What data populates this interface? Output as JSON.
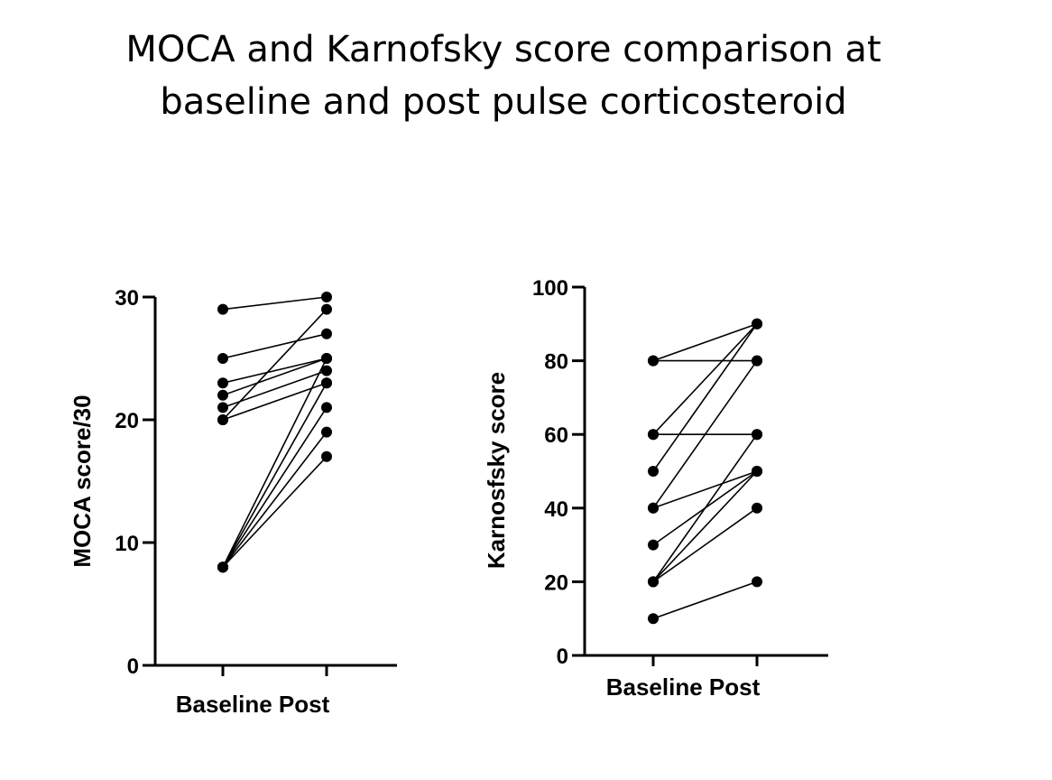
{
  "title": {
    "line1": "MOCA and Karnofsky score comparison at",
    "line2": "baseline and post pulse corticosteroid"
  },
  "colors": {
    "points": "#000000",
    "lines": "#000000",
    "axes": "#000000"
  },
  "chart_data": [
    {
      "type": "line",
      "title": "",
      "categories": [
        "Baseline",
        "Post"
      ],
      "xlabel": "Baseline Post",
      "ylabel": "MOCA score/30",
      "ylim": [
        0,
        30
      ],
      "yticks": [
        0,
        10,
        20,
        30
      ],
      "grid": false,
      "pairs": [
        [
          29,
          30
        ],
        [
          25,
          27
        ],
        [
          23,
          25
        ],
        [
          22,
          25
        ],
        [
          21,
          24
        ],
        [
          20,
          23
        ],
        [
          20,
          29
        ],
        [
          8,
          25
        ],
        [
          8,
          23
        ],
        [
          8,
          21
        ],
        [
          8,
          19
        ],
        [
          8,
          17
        ]
      ]
    },
    {
      "type": "line",
      "title": "",
      "categories": [
        "Baseline",
        "Post"
      ],
      "xlabel": "Baseline Post",
      "ylabel": "Karnosfsky score",
      "ylim": [
        0,
        100
      ],
      "yticks": [
        0,
        20,
        40,
        60,
        80,
        100
      ],
      "grid": false,
      "pairs": [
        [
          80,
          90
        ],
        [
          80,
          80
        ],
        [
          60,
          90
        ],
        [
          60,
          60
        ],
        [
          50,
          90
        ],
        [
          40,
          80
        ],
        [
          40,
          50
        ],
        [
          30,
          50
        ],
        [
          20,
          60
        ],
        [
          20,
          50
        ],
        [
          20,
          40
        ],
        [
          10,
          20
        ]
      ]
    }
  ]
}
